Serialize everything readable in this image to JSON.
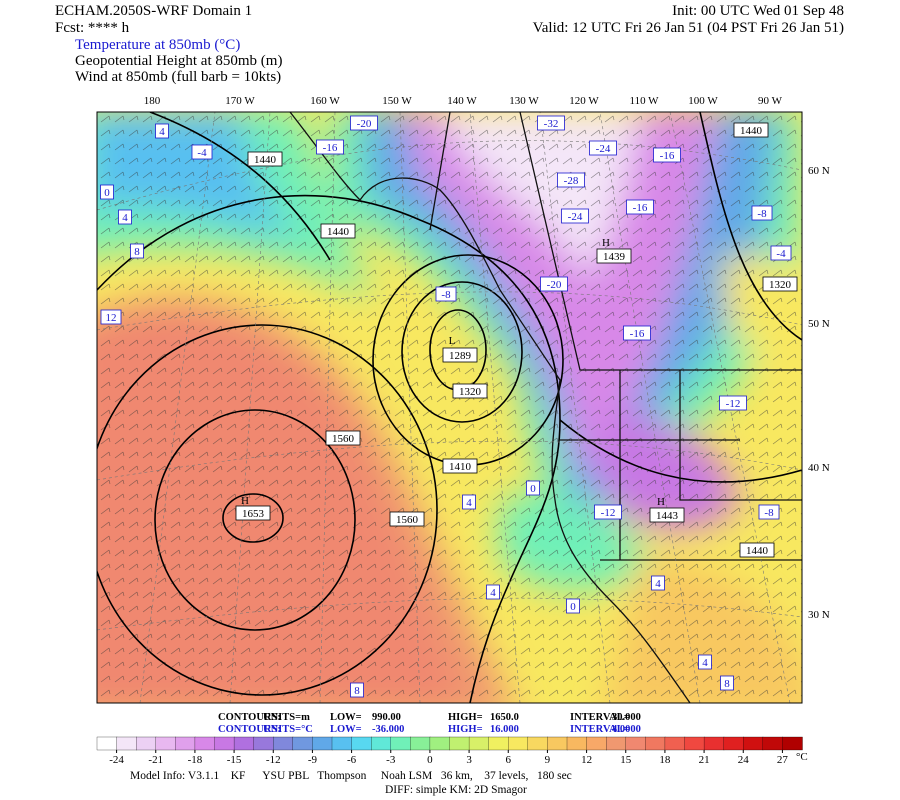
{
  "header": {
    "model": "ECHAM.2050S-WRF Domain 1",
    "fcst": "Fcst: **** h",
    "init": "Init: 00 UTC Wed 01 Sep 48",
    "valid": "Valid: 12 UTC Fri 26 Jan 51 (04 PST Fri 26 Jan 51)",
    "fields": [
      "Temperature at 850mb (°C)",
      "Geopotential Height at 850mb (m)",
      "Wind at 850mb (full barb = 10kts)"
    ]
  },
  "lon_labels": [
    "180",
    "170 W",
    "160 W",
    "150 W",
    "140 W",
    "130 W",
    "120 W",
    "110 W",
    "100 W",
    "90 W"
  ],
  "lat_labels": [
    "60 N",
    "50 N",
    "40 N",
    "30 N"
  ],
  "map_labels": [
    {
      "text": "1440",
      "kind": "height"
    },
    {
      "text": "1440",
      "kind": "height"
    },
    {
      "text": "1560",
      "kind": "height"
    },
    {
      "text": "1653",
      "kind": "height"
    },
    {
      "text": "1289",
      "kind": "height"
    },
    {
      "text": "1320",
      "kind": "height"
    },
    {
      "text": "1410",
      "kind": "height"
    },
    {
      "text": "1560",
      "kind": "height"
    },
    {
      "text": "1439",
      "kind": "height"
    },
    {
      "text": "1440",
      "kind": "height"
    },
    {
      "text": "1320",
      "kind": "height"
    },
    {
      "text": "1440",
      "kind": "height"
    },
    {
      "text": "1443",
      "kind": "height"
    },
    {
      "text": "H",
      "kind": "center"
    },
    {
      "text": "L",
      "kind": "center"
    },
    {
      "text": "H",
      "kind": "center"
    },
    {
      "text": "H",
      "kind": "center"
    },
    {
      "text": "-20",
      "kind": "temp"
    },
    {
      "text": "-16",
      "kind": "temp"
    },
    {
      "text": "-4",
      "kind": "temp"
    },
    {
      "text": "4",
      "kind": "temp"
    },
    {
      "text": "0",
      "kind": "temp"
    },
    {
      "text": "4",
      "kind": "temp"
    },
    {
      "text": "8",
      "kind": "temp"
    },
    {
      "text": "12",
      "kind": "temp"
    },
    {
      "text": "-32",
      "kind": "temp"
    },
    {
      "text": "-24",
      "kind": "temp"
    },
    {
      "text": "-16",
      "kind": "temp"
    },
    {
      "text": "-28",
      "kind": "temp"
    },
    {
      "text": "-24",
      "kind": "temp"
    },
    {
      "text": "-16",
      "kind": "temp"
    },
    {
      "text": "-8",
      "kind": "temp"
    },
    {
      "text": "-4",
      "kind": "temp"
    },
    {
      "text": "-8",
      "kind": "temp"
    },
    {
      "text": "-20",
      "kind": "temp"
    },
    {
      "text": "-16",
      "kind": "temp"
    },
    {
      "text": "-12",
      "kind": "temp"
    },
    {
      "text": "-8",
      "kind": "temp"
    },
    {
      "text": "-12",
      "kind": "temp"
    },
    {
      "text": "0",
      "kind": "temp"
    },
    {
      "text": "4",
      "kind": "temp"
    },
    {
      "text": "4",
      "kind": "temp"
    },
    {
      "text": "0",
      "kind": "temp"
    },
    {
      "text": "4",
      "kind": "temp"
    },
    {
      "text": "4",
      "kind": "temp"
    },
    {
      "text": "8",
      "kind": "temp"
    },
    {
      "text": "8",
      "kind": "temp"
    }
  ],
  "contour_info": [
    [
      "CONTOURS:",
      "UNITS=m",
      "LOW=",
      "990.00",
      "HIGH=",
      "1650.0",
      "INTERVAL=",
      "30.000"
    ],
    [
      "CONTOURS:",
      "UNITS=°C",
      "LOW=",
      "-36.000",
      "HIGH=",
      "16.000",
      "INTERVAL=",
      "4.0000"
    ]
  ],
  "colorbar": {
    "range": [
      -25.5,
      28.5
    ],
    "ticks": [
      -24,
      -21,
      -18,
      -15,
      -12,
      -9,
      -6,
      -3,
      0,
      3,
      6,
      9,
      12,
      15,
      18,
      21,
      24,
      27
    ],
    "unit": "°C",
    "colors": [
      "#ffffff",
      "#f4e6f8",
      "#ecd0f4",
      "#e8b8f0",
      "#e0a0ec",
      "#d888e8",
      "#c878e4",
      "#b070e0",
      "#9878dc",
      "#8088dc",
      "#7098e0",
      "#60a8e8",
      "#58c0f0",
      "#58d8f0",
      "#60e8d8",
      "#70f0b8",
      "#88f098",
      "#a0f080",
      "#c0f070",
      "#d8f068",
      "#f0f060",
      "#f8e860",
      "#f8d860",
      "#f8c860",
      "#f8b860",
      "#f8a868",
      "#f09870",
      "#f08870",
      "#f07860",
      "#f06050",
      "#f04840",
      "#e83030",
      "#e02020",
      "#d01010",
      "#c00808",
      "#b00000"
    ]
  },
  "footer": {
    "model_info": "Model Info: V3.1.1    KF      YSU PBL   Thompson     Noah LSM   36 km,    37 levels,   180 sec",
    "diff": "DIFF: simple KM: 2D Smagor"
  }
}
